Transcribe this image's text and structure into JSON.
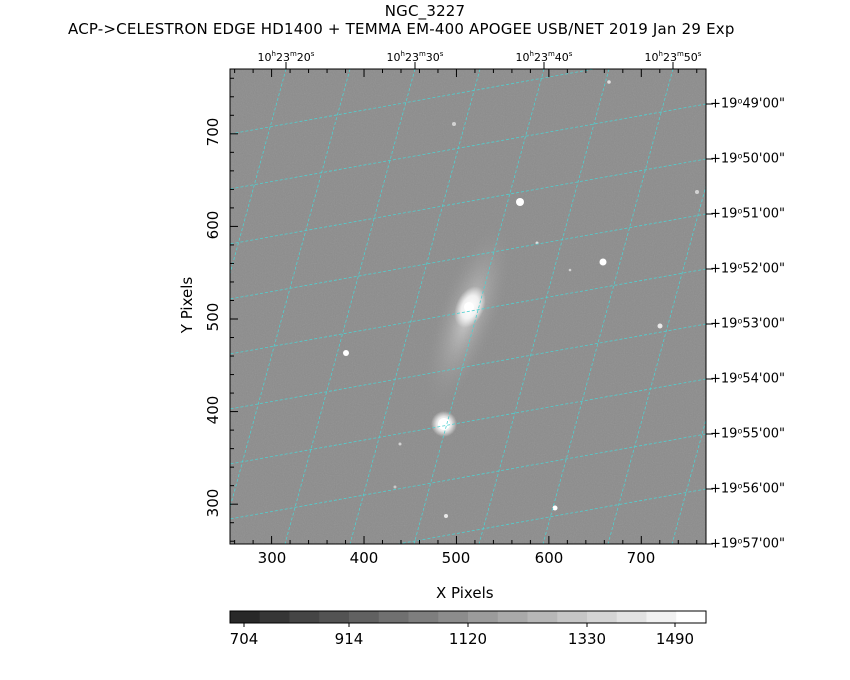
{
  "header": {
    "title": "NGC_3227",
    "subtitle": "ACP->CELESTRON EDGE HD1400 + TEMMA EM-400 APOGEE USB/NET   2019 Jan 29    Exp"
  },
  "axes": {
    "x_label": "X Pixels",
    "y_label": "Y Pixels",
    "x_ticks": [
      "300",
      "400",
      "500",
      "600",
      "700"
    ],
    "y_ticks": [
      "700",
      "600",
      "500",
      "400",
      "300"
    ]
  },
  "ra_labels": [
    {
      "h": "10",
      "m": "23",
      "s": "20"
    },
    {
      "h": "10",
      "m": "23",
      "s": "30"
    },
    {
      "h": "10",
      "m": "23",
      "s": "40"
    },
    {
      "h": "10",
      "m": "23",
      "s": "50"
    }
  ],
  "dec_labels": [
    {
      "d": "+19",
      "m": "49",
      "s": "00"
    },
    {
      "d": "+19",
      "m": "50",
      "s": "00"
    },
    {
      "d": "+19",
      "m": "51",
      "s": "00"
    },
    {
      "d": "+19",
      "m": "52",
      "s": "00"
    },
    {
      "d": "+19",
      "m": "53",
      "s": "00"
    },
    {
      "d": "+19",
      "m": "54",
      "s": "00"
    },
    {
      "d": "+19",
      "m": "55",
      "s": "00"
    },
    {
      "d": "+19",
      "m": "56",
      "s": "00"
    },
    {
      "d": "+19",
      "m": "57",
      "s": "00"
    }
  ],
  "colorbar": {
    "labels": [
      "704",
      "914",
      "1120",
      "1330",
      "1490"
    ]
  },
  "colors": {
    "sky_background": "#8e8e8e",
    "grid_lines": "#4fd0d0",
    "frame": "#000000"
  }
}
